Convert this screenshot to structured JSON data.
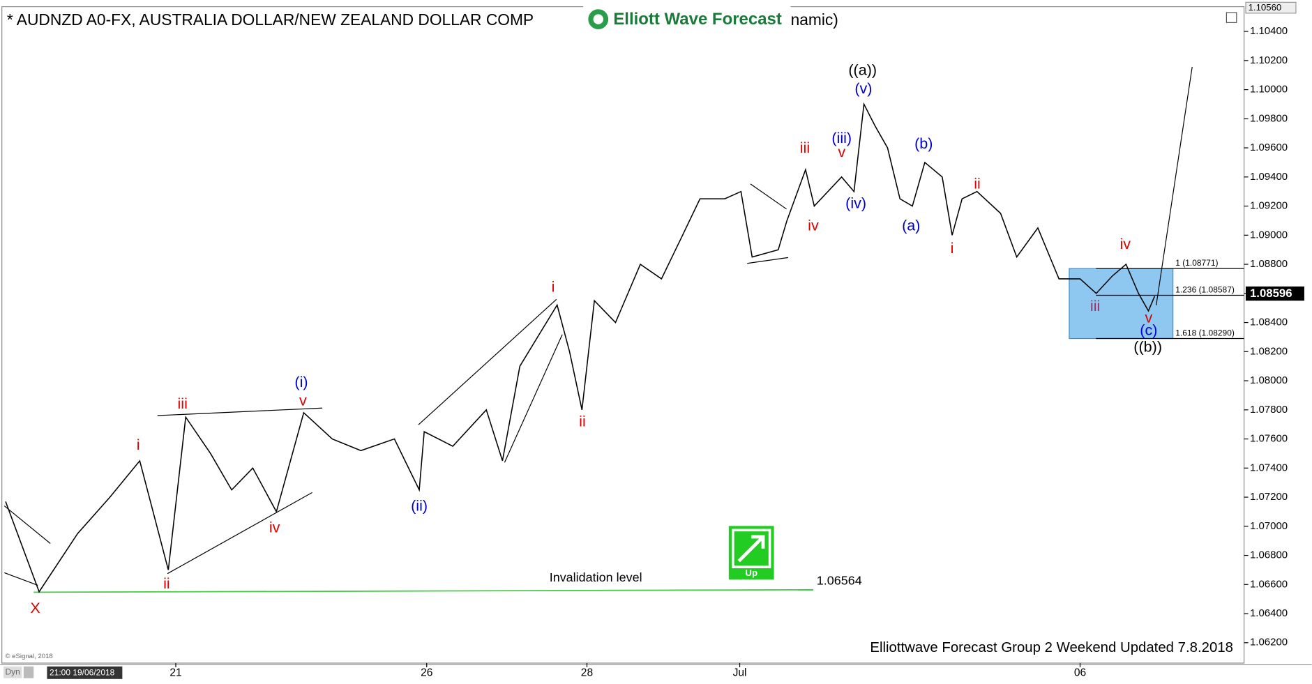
{
  "chart_data": {
    "type": "line",
    "title": "* AUDNZD A0-FX, AUSTRALIA DOLLAR/NEW ZEALAND DOLLAR COMP",
    "title_tail": "namic)",
    "logo": "Elliott Wave Forecast",
    "footer": "Elliottwave Forecast Group 2 Weekend Updated 7.8.2018",
    "copyright": "© eSignal, 2018",
    "mode": "Dyn",
    "start_time": "21:00 19/06/2018",
    "up_icon": "Up",
    "axis_top": {
      "value": 1.1056,
      "label": "1.10560"
    },
    "last_price": {
      "value": 1.08596,
      "label": "1.08596"
    },
    "invalidation": {
      "text": "Invalidation level",
      "value": 1.06564,
      "label": "1.06564",
      "color": "#44cc44"
    },
    "fib_levels": [
      {
        "value": 1.08771,
        "label": "1 (1.08771)"
      },
      {
        "value": 1.08587,
        "label": "1.236 (1.08587)"
      },
      {
        "value": 1.0829,
        "label": "1.618 (1.08290)"
      }
    ],
    "box_color": "#8ec8f0",
    "xlim": [
      0,
      100
    ],
    "xticks": [
      {
        "value": 14.0,
        "label": "21"
      },
      {
        "value": 34.2,
        "label": "26"
      },
      {
        "value": 47.1,
        "label": "28"
      },
      {
        "value": 59.4,
        "label": "Jul"
      },
      {
        "value": 86.8,
        "label": "06"
      }
    ],
    "ylim": [
      1.0606,
      1.1057
    ],
    "yticks": [
      {
        "value": 1.062,
        "label": "1.06200"
      },
      {
        "value": 1.064,
        "label": "1.06400"
      },
      {
        "value": 1.066,
        "label": "1.06600"
      },
      {
        "value": 1.068,
        "label": "1.06800"
      },
      {
        "value": 1.07,
        "label": "1.07000"
      },
      {
        "value": 1.072,
        "label": "1.07200"
      },
      {
        "value": 1.074,
        "label": "1.07400"
      },
      {
        "value": 1.076,
        "label": "1.07600"
      },
      {
        "value": 1.078,
        "label": "1.07800"
      },
      {
        "value": 1.08,
        "label": "1.08000"
      },
      {
        "value": 1.082,
        "label": "1.08200"
      },
      {
        "value": 1.084,
        "label": "1.08400"
      },
      {
        "value": 1.086,
        "label": "1.08600"
      },
      {
        "value": 1.088,
        "label": "1.08800"
      },
      {
        "value": 1.09,
        "label": "1.09000"
      },
      {
        "value": 1.092,
        "label": "1.09200"
      },
      {
        "value": 1.094,
        "label": "1.09400"
      },
      {
        "value": 1.096,
        "label": "1.09600"
      },
      {
        "value": 1.098,
        "label": "1.09800"
      },
      {
        "value": 1.1,
        "label": "1.10000"
      },
      {
        "value": 1.102,
        "label": "1.10200"
      },
      {
        "value": 1.104,
        "label": "1.10400"
      }
    ],
    "series": [
      {
        "name": "AUDNZD",
        "color": "#000000",
        "x": [
          0.3,
          3.0,
          6.1,
          8.7,
          11.1,
          13.4,
          14.8,
          16.8,
          18.5,
          20.2,
          22.1,
          24.3,
          26.6,
          28.9,
          31.6,
          33.6,
          34.0,
          36.3,
          39.0,
          40.3,
          41.7,
          44.7,
          45.7,
          46.7,
          47.7,
          49.4,
          51.4,
          53.1,
          54.8,
          56.2,
          58.2,
          59.5,
          60.4,
          62.5,
          63.2,
          64.7,
          65.4,
          67.6,
          68.6,
          69.4,
          70.3,
          71.3,
          72.3,
          73.3,
          74.3,
          75.7,
          76.5,
          77.3,
          78.5,
          80.4,
          81.7,
          83.4,
          85.1,
          86.8,
          88.1,
          89.4,
          90.5,
          91.5,
          92.3,
          92.8
        ],
        "values": [
          1.0717,
          1.0655,
          1.0695,
          1.072,
          1.0745,
          1.067,
          1.0775,
          1.075,
          1.0725,
          1.074,
          1.071,
          1.0778,
          1.076,
          1.0752,
          1.076,
          1.0725,
          1.0765,
          1.0755,
          1.078,
          1.0745,
          1.081,
          1.0852,
          1.082,
          1.078,
          1.0855,
          1.084,
          1.088,
          1.087,
          1.09,
          1.0925,
          1.0925,
          1.093,
          1.0885,
          1.089,
          1.091,
          1.0945,
          1.092,
          1.094,
          1.093,
          1.099,
          1.0975,
          1.096,
          1.0925,
          1.092,
          1.095,
          1.094,
          1.09,
          1.0925,
          1.093,
          1.0915,
          1.0885,
          1.0905,
          1.087,
          1.087,
          1.086,
          1.0872,
          1.088,
          1.086,
          1.0848,
          1.0858
        ]
      }
    ],
    "wave_labels": [
      {
        "text": "X",
        "color": "#dd0000"
      },
      {
        "text": "i",
        "color": "#dd0000"
      },
      {
        "text": "ii",
        "color": "#dd0000"
      },
      {
        "text": "iii",
        "color": "#dd0000"
      },
      {
        "text": "iv",
        "color": "#dd0000"
      },
      {
        "text": "v",
        "color": "#dd0000"
      },
      {
        "text": "(i)",
        "color": "#0000cc"
      },
      {
        "text": "(ii)",
        "color": "#0000cc"
      },
      {
        "text": "i",
        "color": "#dd0000"
      },
      {
        "text": "ii",
        "color": "#dd0000"
      },
      {
        "text": "iii",
        "color": "#dd0000"
      },
      {
        "text": "iv",
        "color": "#dd0000"
      },
      {
        "text": "v",
        "color": "#dd0000"
      },
      {
        "text": "(iii)",
        "color": "#0000cc"
      },
      {
        "text": "(iv)",
        "color": "#0000cc"
      },
      {
        "text": "((a))",
        "color": "#000000"
      },
      {
        "text": "(v)",
        "color": "#0000cc"
      },
      {
        "text": "(b)",
        "color": "#0000cc"
      },
      {
        "text": "(a)",
        "color": "#0000cc"
      },
      {
        "text": "i",
        "color": "#dd0000"
      },
      {
        "text": "ii",
        "color": "#dd0000"
      },
      {
        "text": "iii",
        "color": "#993366"
      },
      {
        "text": "iv",
        "color": "#dd0000"
      },
      {
        "text": "v",
        "color": "#dd0000"
      },
      {
        "text": "(c)",
        "color": "#0000cc"
      },
      {
        "text": "((b))",
        "color": "#000000"
      }
    ]
  }
}
